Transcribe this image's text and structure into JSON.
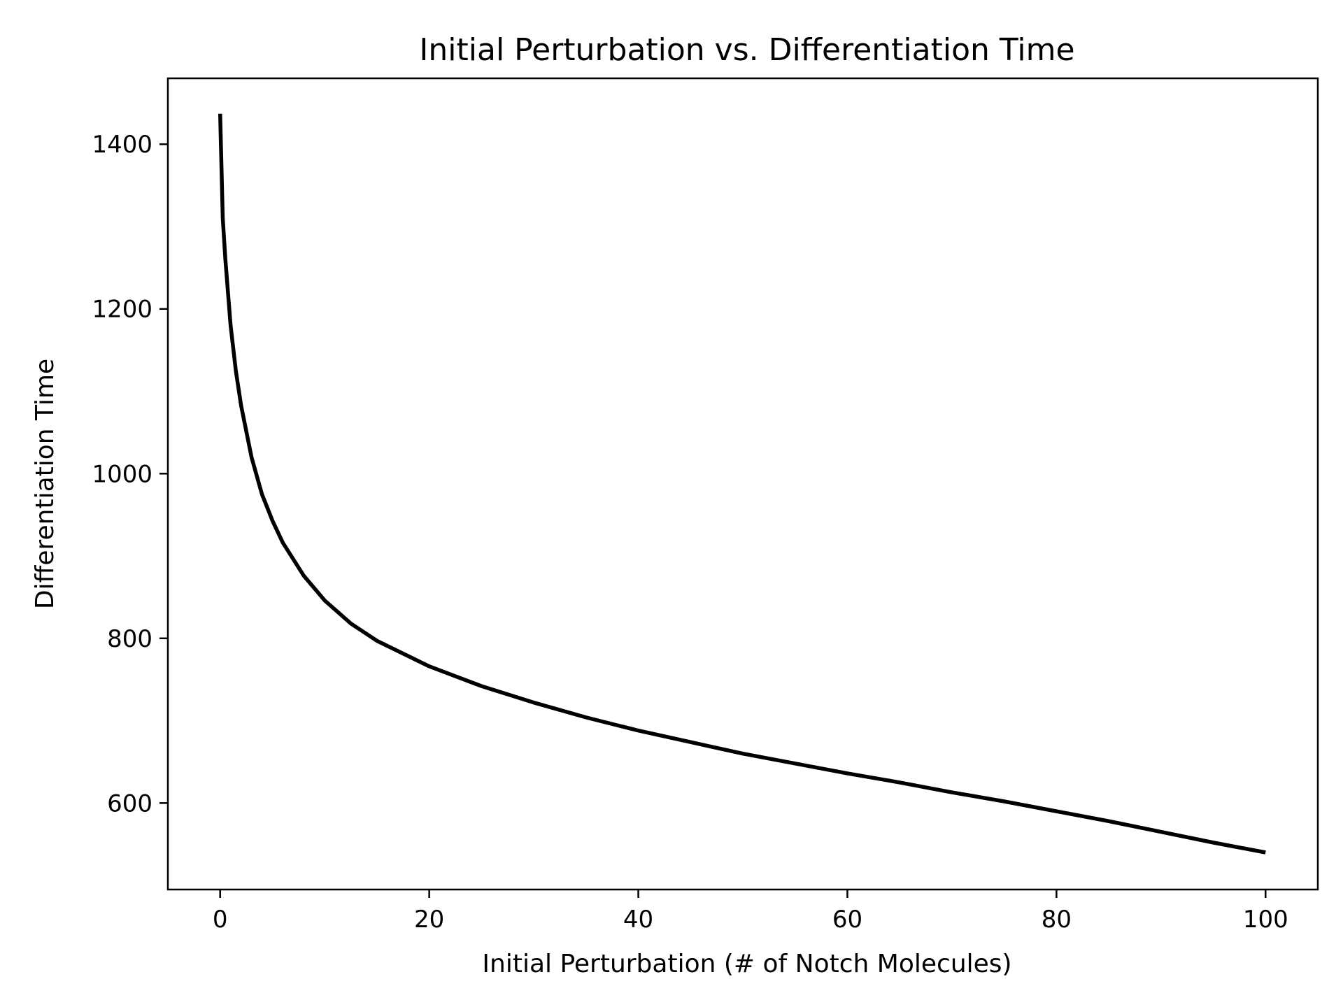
{
  "chart_data": {
    "type": "line",
    "title": "Initial Perturbation vs. Differentiation Time",
    "xlabel": "Initial Perturbation (# of Notch Molecules)",
    "ylabel": "Differentiation Time",
    "xlim": [
      -5,
      105
    ],
    "ylim": [
      495,
      1480
    ],
    "xticks": [
      0,
      20,
      40,
      60,
      80,
      100
    ],
    "yticks": [
      600,
      800,
      1000,
      1200,
      1400
    ],
    "grid": false,
    "line_color": "#000000",
    "series": [
      {
        "x": [
          0,
          0.25,
          0.5,
          1,
          1.5,
          2,
          3,
          4,
          5,
          6,
          8,
          10,
          12.5,
          15,
          20,
          25,
          30,
          35,
          40,
          45,
          50,
          55,
          60,
          65,
          70,
          75,
          80,
          85,
          90,
          95,
          100
        ],
        "values": [
          1437,
          1310,
          1260,
          1180,
          1125,
          1083,
          1020,
          975,
          943,
          916,
          876,
          846,
          818,
          797,
          766,
          742,
          722,
          704,
          688,
          674,
          660,
          648,
          636,
          625,
          613,
          602,
          590,
          578,
          565,
          552,
          540
        ]
      }
    ]
  }
}
